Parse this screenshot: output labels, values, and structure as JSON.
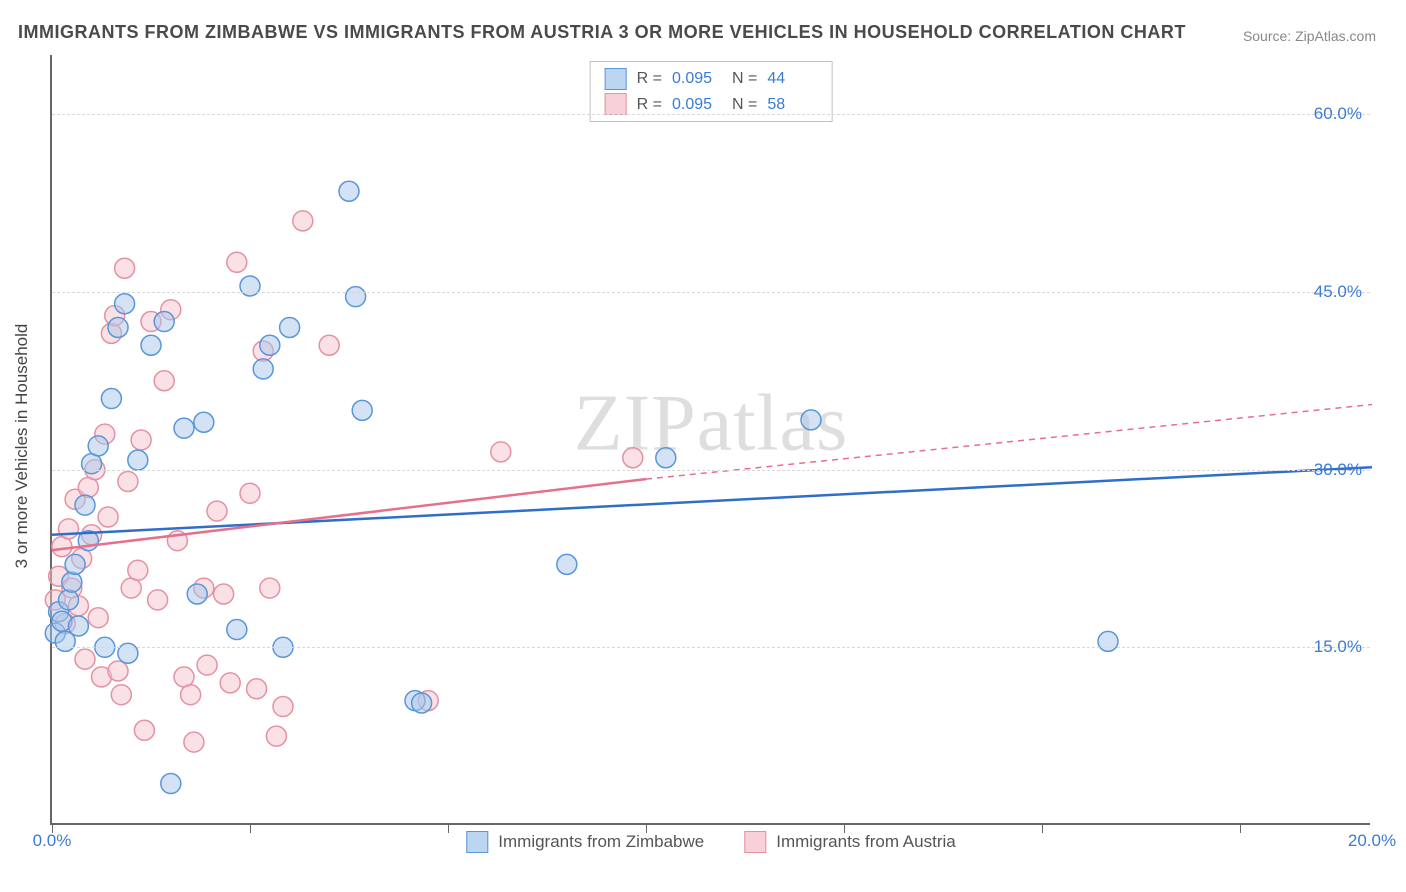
{
  "title": "IMMIGRANTS FROM ZIMBABWE VS IMMIGRANTS FROM AUSTRIA 3 OR MORE VEHICLES IN HOUSEHOLD CORRELATION CHART",
  "source": "Source: ZipAtlas.com",
  "watermark": "ZIPatlas",
  "ylabel": "3 or more Vehicles in Household",
  "chart": {
    "type": "scatter",
    "background_color": "#ffffff",
    "grid_color": "#d8d8d8",
    "axis_color": "#666666",
    "tick_label_color": "#3a7bd5",
    "xlim": [
      0,
      20
    ],
    "ylim": [
      0,
      65
    ],
    "yticks": [
      15,
      30,
      45,
      60
    ],
    "ytick_labels": [
      "15.0%",
      "30.0%",
      "45.0%",
      "60.0%"
    ],
    "xticks": [
      0,
      20
    ],
    "xtick_labels": [
      "0.0%",
      "20.0%"
    ],
    "xtick_minors": [
      0,
      3,
      6,
      9,
      12,
      15,
      18
    ],
    "marker_radius": 10,
    "marker_opacity": 0.5,
    "marker_stroke_width": 1.5,
    "series": [
      {
        "name": "Immigrants from Zimbabwe",
        "color_fill": "#a8c8ec",
        "color_stroke": "#5a96d8",
        "legend_swatch_fill": "#bcd5f0",
        "legend_swatch_stroke": "#5a96d8",
        "r_value": "0.095",
        "n_value": "44",
        "trend": {
          "x1": 0,
          "y1": 24.5,
          "x2": 20,
          "y2": 30.2,
          "color": "#2f6fc9",
          "width": 2.5,
          "dash": "none"
        },
        "points": [
          [
            0.05,
            16.2
          ],
          [
            0.1,
            18.0
          ],
          [
            0.15,
            17.2
          ],
          [
            0.2,
            15.5
          ],
          [
            0.25,
            19.0
          ],
          [
            0.3,
            20.5
          ],
          [
            0.35,
            22.0
          ],
          [
            0.4,
            16.8
          ],
          [
            0.5,
            27.0
          ],
          [
            0.55,
            24.0
          ],
          [
            0.6,
            30.5
          ],
          [
            0.7,
            32.0
          ],
          [
            0.8,
            15.0
          ],
          [
            0.9,
            36.0
          ],
          [
            1.0,
            42.0
          ],
          [
            1.1,
            44.0
          ],
          [
            1.15,
            14.5
          ],
          [
            1.3,
            30.8
          ],
          [
            1.5,
            40.5
          ],
          [
            1.7,
            42.5
          ],
          [
            1.8,
            3.5
          ],
          [
            2.0,
            33.5
          ],
          [
            2.2,
            19.5
          ],
          [
            2.3,
            34.0
          ],
          [
            2.8,
            16.5
          ],
          [
            3.0,
            45.5
          ],
          [
            3.2,
            38.5
          ],
          [
            3.3,
            40.5
          ],
          [
            3.5,
            15.0
          ],
          [
            3.6,
            42.0
          ],
          [
            4.5,
            53.5
          ],
          [
            4.6,
            44.6
          ],
          [
            4.7,
            35.0
          ],
          [
            5.5,
            10.5
          ],
          [
            5.6,
            10.3
          ],
          [
            7.8,
            22.0
          ],
          [
            9.3,
            31.0
          ],
          [
            11.5,
            34.2
          ],
          [
            16.0,
            15.5
          ]
        ]
      },
      {
        "name": "Immigrants from Austria",
        "color_fill": "#f4c4ce",
        "color_stroke": "#e492a3",
        "legend_swatch_fill": "#f7d0d8",
        "legend_swatch_stroke": "#e492a3",
        "r_value": "0.095",
        "n_value": "58",
        "trend": {
          "x1": 0,
          "y1": 23.2,
          "x2": 9,
          "y2": 29.2,
          "color": "#e86f8a",
          "width": 2.5,
          "dash": "none",
          "extra": {
            "x1": 9,
            "y1": 29.2,
            "x2": 20,
            "y2": 35.5,
            "dash": "6,5",
            "width": 1.5
          }
        },
        "points": [
          [
            0.05,
            19.0
          ],
          [
            0.1,
            21.0
          ],
          [
            0.15,
            23.5
          ],
          [
            0.2,
            17.0
          ],
          [
            0.25,
            25.0
          ],
          [
            0.3,
            20.0
          ],
          [
            0.35,
            27.5
          ],
          [
            0.4,
            18.5
          ],
          [
            0.45,
            22.5
          ],
          [
            0.5,
            14.0
          ],
          [
            0.55,
            28.5
          ],
          [
            0.6,
            24.5
          ],
          [
            0.65,
            30.0
          ],
          [
            0.7,
            17.5
          ],
          [
            0.75,
            12.5
          ],
          [
            0.8,
            33.0
          ],
          [
            0.85,
            26.0
          ],
          [
            0.9,
            41.5
          ],
          [
            0.95,
            43.0
          ],
          [
            1.0,
            13.0
          ],
          [
            1.05,
            11.0
          ],
          [
            1.1,
            47.0
          ],
          [
            1.15,
            29.0
          ],
          [
            1.2,
            20.0
          ],
          [
            1.3,
            21.5
          ],
          [
            1.35,
            32.5
          ],
          [
            1.4,
            8.0
          ],
          [
            1.5,
            42.5
          ],
          [
            1.6,
            19.0
          ],
          [
            1.7,
            37.5
          ],
          [
            1.8,
            43.5
          ],
          [
            1.9,
            24.0
          ],
          [
            2.0,
            12.5
          ],
          [
            2.1,
            11.0
          ],
          [
            2.15,
            7.0
          ],
          [
            2.3,
            20.0
          ],
          [
            2.35,
            13.5
          ],
          [
            2.5,
            26.5
          ],
          [
            2.6,
            19.5
          ],
          [
            2.7,
            12.0
          ],
          [
            2.8,
            47.5
          ],
          [
            3.0,
            28.0
          ],
          [
            3.1,
            11.5
          ],
          [
            3.2,
            40.0
          ],
          [
            3.3,
            20.0
          ],
          [
            3.4,
            7.5
          ],
          [
            3.5,
            10.0
          ],
          [
            3.8,
            51.0
          ],
          [
            4.2,
            40.5
          ],
          [
            5.7,
            10.5
          ],
          [
            6.8,
            31.5
          ],
          [
            8.8,
            31.0
          ]
        ]
      }
    ],
    "legend_top_labels": {
      "r": "R =",
      "n": "N ="
    },
    "legend_bottom": [
      {
        "label": "Immigrants from Zimbabwe",
        "fill": "#bcd5f0",
        "stroke": "#5a96d8"
      },
      {
        "label": "Immigrants from Austria",
        "fill": "#f7d0d8",
        "stroke": "#e492a3"
      }
    ]
  }
}
